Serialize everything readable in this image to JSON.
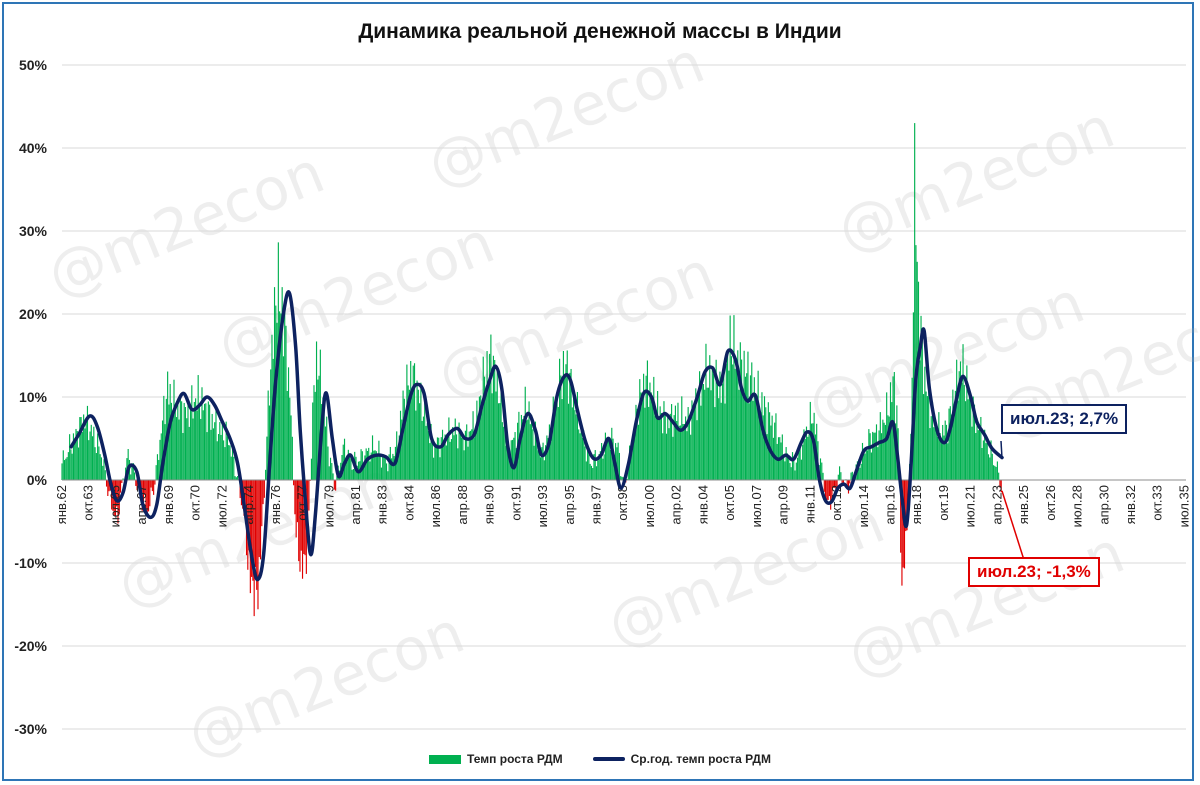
{
  "chart_data": {
    "type": "bar",
    "title": "Динамика реальной денежной массы в Индии",
    "xlabel": "",
    "ylabel": "",
    "ylim": [
      -30,
      50
    ],
    "y_ticks": [
      "50%",
      "40%",
      "30%",
      "20%",
      "10%",
      "0%",
      "-10%",
      "-20%",
      "-30%"
    ],
    "y_tick_values": [
      50,
      40,
      30,
      20,
      10,
      0,
      -10,
      -20,
      -30
    ],
    "x_range": [
      1962.0,
      2035.6
    ],
    "x_ticks": [
      {
        "label": "янв.62",
        "t": 1962.0
      },
      {
        "label": "окт.63",
        "t": 1963.75
      },
      {
        "label": "июл.65",
        "t": 1965.5
      },
      {
        "label": "апр.67",
        "t": 1967.25
      },
      {
        "label": "янв.69",
        "t": 1969.0
      },
      {
        "label": "окт.70",
        "t": 1970.75
      },
      {
        "label": "июл.72",
        "t": 1972.5
      },
      {
        "label": "апр.74",
        "t": 1974.25
      },
      {
        "label": "янв.76",
        "t": 1976.0
      },
      {
        "label": "окт.77",
        "t": 1977.75
      },
      {
        "label": "июл.79",
        "t": 1979.5
      },
      {
        "label": "апр.81",
        "t": 1981.25
      },
      {
        "label": "янв.83",
        "t": 1983.0
      },
      {
        "label": "окт.84",
        "t": 1984.75
      },
      {
        "label": "июл.86",
        "t": 1986.5
      },
      {
        "label": "апр.88",
        "t": 1988.25
      },
      {
        "label": "янв.90",
        "t": 1990.0
      },
      {
        "label": "окт.91",
        "t": 1991.75
      },
      {
        "label": "июл.93",
        "t": 1993.5
      },
      {
        "label": "апр.95",
        "t": 1995.25
      },
      {
        "label": "янв.97",
        "t": 1997.0
      },
      {
        "label": "окт.98",
        "t": 1998.75
      },
      {
        "label": "июл.00",
        "t": 2000.5
      },
      {
        "label": "апр.02",
        "t": 2002.25
      },
      {
        "label": "янв.04",
        "t": 2004.0
      },
      {
        "label": "окт.05",
        "t": 2005.75
      },
      {
        "label": "июл.07",
        "t": 2007.5
      },
      {
        "label": "апр.09",
        "t": 2009.25
      },
      {
        "label": "янв.11",
        "t": 2011.0
      },
      {
        "label": "окт.12",
        "t": 2012.75
      },
      {
        "label": "июл.14",
        "t": 2014.5
      },
      {
        "label": "апр.16",
        "t": 2016.25
      },
      {
        "label": "янв.18",
        "t": 2018.0
      },
      {
        "label": "окт.19",
        "t": 2019.75
      },
      {
        "label": "июл.21",
        "t": 2021.5
      },
      {
        "label": "апр.23",
        "t": 2023.25
      },
      {
        "label": "янв.25",
        "t": 2025.0
      },
      {
        "label": "окт.26",
        "t": 2026.75
      },
      {
        "label": "июл.28",
        "t": 2028.5
      },
      {
        "label": "апр.30",
        "t": 2030.25
      },
      {
        "label": "янв.32",
        "t": 2032.0
      },
      {
        "label": "окт.33",
        "t": 2033.75
      },
      {
        "label": "июл.35",
        "t": 2035.5
      }
    ],
    "grid": true,
    "legend_position": "bottom",
    "series": [
      {
        "name": "Темп роста РДМ",
        "type": "bar",
        "colors": {
          "positive": "#00b050",
          "negative": "#e00000"
        },
        "anchors": [
          [
            1962.0,
            2
          ],
          [
            1962.8,
            5
          ],
          [
            1963.5,
            7.5
          ],
          [
            1963.9,
            6
          ],
          [
            1964.6,
            3
          ],
          [
            1965.1,
            -2
          ],
          [
            1965.6,
            -5
          ],
          [
            1966.0,
            0
          ],
          [
            1966.3,
            3
          ],
          [
            1966.7,
            1
          ],
          [
            1967.1,
            -2
          ],
          [
            1967.6,
            -4
          ],
          [
            1968.1,
            0
          ],
          [
            1968.5,
            6
          ],
          [
            1968.9,
            11
          ],
          [
            1969.4,
            9
          ],
          [
            1970.2,
            8
          ],
          [
            1970.9,
            10
          ],
          [
            1971.6,
            8
          ],
          [
            1972.3,
            6
          ],
          [
            1972.9,
            5
          ],
          [
            1973.4,
            1
          ],
          [
            1973.9,
            -4
          ],
          [
            1974.3,
            -12
          ],
          [
            1974.8,
            -14
          ],
          [
            1975.2,
            -3
          ],
          [
            1975.6,
            12
          ],
          [
            1976.1,
            24
          ],
          [
            1976.6,
            18
          ],
          [
            1977.0,
            8
          ],
          [
            1977.3,
            -6
          ],
          [
            1977.7,
            -11
          ],
          [
            1978.1,
            -8
          ],
          [
            1978.4,
            8
          ],
          [
            1978.7,
            15
          ],
          [
            1979.1,
            10
          ],
          [
            1979.5,
            3
          ],
          [
            1979.9,
            -1
          ],
          [
            1980.4,
            4
          ],
          [
            1981.0,
            2
          ],
          [
            1981.8,
            3
          ],
          [
            1982.5,
            4
          ],
          [
            1983.2,
            2
          ],
          [
            1983.9,
            4
          ],
          [
            1984.4,
            10
          ],
          [
            1984.9,
            13
          ],
          [
            1985.6,
            9
          ],
          [
            1986.3,
            4
          ],
          [
            1987.0,
            5
          ],
          [
            1987.7,
            6
          ],
          [
            1988.4,
            5
          ],
          [
            1989.1,
            7
          ],
          [
            1989.6,
            12
          ],
          [
            1990.1,
            15
          ],
          [
            1990.7,
            10
          ],
          [
            1991.2,
            3
          ],
          [
            1991.8,
            6
          ],
          [
            1992.4,
            9
          ],
          [
            1992.9,
            6
          ],
          [
            1993.4,
            3
          ],
          [
            1994.0,
            6
          ],
          [
            1994.6,
            12
          ],
          [
            1995.0,
            14
          ],
          [
            1995.5,
            10
          ],
          [
            1996.0,
            6
          ],
          [
            1996.6,
            2
          ],
          [
            1997.2,
            3
          ],
          [
            1997.8,
            5
          ],
          [
            1998.4,
            4
          ],
          [
            1998.8,
            -1
          ],
          [
            1999.3,
            4
          ],
          [
            1999.8,
            10
          ],
          [
            2000.3,
            12
          ],
          [
            2000.9,
            9
          ],
          [
            2001.6,
            7
          ],
          [
            2002.3,
            8
          ],
          [
            2003.0,
            7
          ],
          [
            2003.6,
            10
          ],
          [
            2004.2,
            13
          ],
          [
            2004.8,
            12
          ],
          [
            2005.3,
            11
          ],
          [
            2005.8,
            17
          ],
          [
            2006.3,
            14
          ],
          [
            2006.9,
            13
          ],
          [
            2007.6,
            10
          ],
          [
            2008.2,
            8
          ],
          [
            2008.8,
            6
          ],
          [
            2009.4,
            3
          ],
          [
            2010.0,
            2
          ],
          [
            2010.6,
            5
          ],
          [
            2011.2,
            8
          ],
          [
            2011.7,
            2
          ],
          [
            2012.1,
            -3
          ],
          [
            2012.5,
            -2
          ],
          [
            2012.9,
            1
          ],
          [
            2013.4,
            -1
          ],
          [
            2013.9,
            1
          ],
          [
            2014.4,
            3
          ],
          [
            2014.9,
            5
          ],
          [
            2015.5,
            6
          ],
          [
            2016.0,
            8
          ],
          [
            2016.5,
            12
          ],
          [
            2016.8,
            4
          ],
          [
            2017.0,
            -14
          ],
          [
            2017.3,
            -6
          ],
          [
            2017.6,
            5
          ],
          [
            2017.85,
            37
          ],
          [
            2018.1,
            20
          ],
          [
            2018.5,
            12
          ],
          [
            2018.9,
            8
          ],
          [
            2019.4,
            6
          ],
          [
            2019.9,
            6
          ],
          [
            2020.4,
            10
          ],
          [
            2020.9,
            14
          ],
          [
            2021.4,
            10
          ],
          [
            2021.9,
            7
          ],
          [
            2022.4,
            5
          ],
          [
            2022.9,
            3
          ],
          [
            2023.3,
            1
          ],
          [
            2023.55,
            -1.3
          ]
        ]
      },
      {
        "name": "Ср.год. темп роста РДМ",
        "type": "line",
        "color": "#0d2260",
        "anchors": [
          [
            1962.6,
            4
          ],
          [
            1963.1,
            5.5
          ],
          [
            1963.8,
            7.7
          ],
          [
            1964.3,
            6.5
          ],
          [
            1964.8,
            3
          ],
          [
            1965.2,
            -0.5
          ],
          [
            1965.6,
            -2.5
          ],
          [
            1966.0,
            -1.5
          ],
          [
            1966.4,
            1.6
          ],
          [
            1966.9,
            1
          ],
          [
            1967.3,
            -3
          ],
          [
            1967.8,
            -4.5
          ],
          [
            1968.2,
            -3
          ],
          [
            1968.6,
            2
          ],
          [
            1969.1,
            7
          ],
          [
            1969.6,
            9.5
          ],
          [
            1970.0,
            10.4
          ],
          [
            1970.5,
            8.5
          ],
          [
            1971.0,
            9
          ],
          [
            1971.5,
            10
          ],
          [
            1972.0,
            9
          ],
          [
            1972.5,
            7
          ],
          [
            1973.0,
            5
          ],
          [
            1973.5,
            2
          ],
          [
            1974.0,
            -4
          ],
          [
            1974.4,
            -9
          ],
          [
            1974.8,
            -12
          ],
          [
            1975.2,
            -9
          ],
          [
            1975.6,
            2
          ],
          [
            1976.0,
            12
          ],
          [
            1976.5,
            20
          ],
          [
            1976.9,
            22.5
          ],
          [
            1977.3,
            16
          ],
          [
            1977.6,
            6
          ],
          [
            1978.0,
            -4
          ],
          [
            1978.3,
            -9
          ],
          [
            1978.6,
            -4
          ],
          [
            1979.0,
            6
          ],
          [
            1979.3,
            10.5
          ],
          [
            1979.7,
            5
          ],
          [
            1980.1,
            0.5
          ],
          [
            1980.5,
            2
          ],
          [
            1980.9,
            3
          ],
          [
            1981.4,
            1
          ],
          [
            1982.0,
            2.5
          ],
          [
            1982.6,
            3
          ],
          [
            1983.2,
            2.8
          ],
          [
            1983.8,
            2
          ],
          [
            1984.3,
            6
          ],
          [
            1984.8,
            10
          ],
          [
            1985.2,
            11.5
          ],
          [
            1985.7,
            10.5
          ],
          [
            1986.2,
            5
          ],
          [
            1986.8,
            4
          ],
          [
            1987.3,
            5.5
          ],
          [
            1987.9,
            6.2
          ],
          [
            1988.4,
            5
          ],
          [
            1989.0,
            5.5
          ],
          [
            1989.5,
            9
          ],
          [
            1990.0,
            12
          ],
          [
            1990.4,
            13.7
          ],
          [
            1990.8,
            11
          ],
          [
            1991.2,
            4
          ],
          [
            1991.6,
            1.5
          ],
          [
            1992.0,
            5
          ],
          [
            1992.5,
            8
          ],
          [
            1993.0,
            6
          ],
          [
            1993.4,
            3
          ],
          [
            1993.9,
            4.5
          ],
          [
            1994.4,
            10
          ],
          [
            1994.9,
            12.5
          ],
          [
            1995.3,
            12
          ],
          [
            1995.8,
            8
          ],
          [
            1996.3,
            4.5
          ],
          [
            1996.8,
            2.6
          ],
          [
            1997.3,
            3
          ],
          [
            1997.8,
            5
          ],
          [
            1998.2,
            2
          ],
          [
            1998.6,
            -1
          ],
          [
            1999.1,
            2
          ],
          [
            1999.6,
            7
          ],
          [
            2000.1,
            10.5
          ],
          [
            2000.6,
            10
          ],
          [
            2001.0,
            7.5
          ],
          [
            2001.5,
            8
          ],
          [
            2002.0,
            7
          ],
          [
            2002.5,
            6
          ],
          [
            2003.0,
            7
          ],
          [
            2003.6,
            10
          ],
          [
            2004.1,
            13
          ],
          [
            2004.6,
            13.5
          ],
          [
            2005.1,
            11.5
          ],
          [
            2005.6,
            15.5
          ],
          [
            2006.1,
            14.5
          ],
          [
            2006.5,
            11
          ],
          [
            2006.9,
            9.5
          ],
          [
            2007.4,
            10.2
          ],
          [
            2007.9,
            6
          ],
          [
            2008.4,
            3.5
          ],
          [
            2008.9,
            2.5
          ],
          [
            2009.4,
            3
          ],
          [
            2009.9,
            2.5
          ],
          [
            2010.4,
            4.5
          ],
          [
            2010.8,
            5.8
          ],
          [
            2011.2,
            4.8
          ],
          [
            2011.6,
            0
          ],
          [
            2012.0,
            -2.5
          ],
          [
            2012.4,
            -2.6
          ],
          [
            2012.8,
            -1
          ],
          [
            2013.2,
            -0.5
          ],
          [
            2013.6,
            -1
          ],
          [
            2014.0,
            1
          ],
          [
            2014.5,
            3.5
          ],
          [
            2015.0,
            4
          ],
          [
            2015.5,
            4.5
          ],
          [
            2016.0,
            5
          ],
          [
            2016.4,
            7
          ],
          [
            2016.7,
            3
          ],
          [
            2017.0,
            -2
          ],
          [
            2017.3,
            -5.5
          ],
          [
            2017.6,
            2
          ],
          [
            2017.9,
            12
          ],
          [
            2018.2,
            16
          ],
          [
            2018.45,
            18
          ],
          [
            2018.8,
            11
          ],
          [
            2019.3,
            6
          ],
          [
            2019.8,
            4.5
          ],
          [
            2020.2,
            6.5
          ],
          [
            2020.6,
            10
          ],
          [
            2021.0,
            12.5
          ],
          [
            2021.5,
            10
          ],
          [
            2021.9,
            7
          ],
          [
            2022.4,
            5.5
          ],
          [
            2022.9,
            3.8
          ],
          [
            2023.55,
            2.7
          ]
        ]
      }
    ],
    "annotations": [
      {
        "label": "июл.23; 2,7%",
        "series": "Ср.год. темп роста РДМ",
        "x": 2023.5,
        "y": 2.7
      },
      {
        "label": "июл.23; -1,3%",
        "series": "Темп роста РДМ",
        "x": 2023.5,
        "y": -1.3
      }
    ]
  },
  "legend": {
    "bar_label": "Темп роста РДМ",
    "line_label": "Ср.год. темп роста РДМ"
  },
  "watermark_text": "@m2econ"
}
